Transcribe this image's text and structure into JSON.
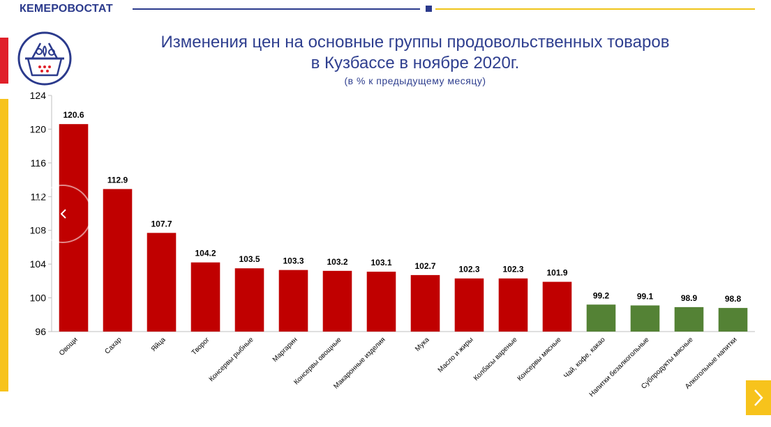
{
  "header": {
    "brand": "КЕМЕРОВОСТАТ"
  },
  "title_line1": "Изменения цен на основные группы продовольственных товаров",
  "title_line2": "в Кузбассе в ноябре 2020г.",
  "subtitle": "(в % к предыдущему  месяцу)",
  "colors": {
    "red": "#c00000",
    "green": "#548235",
    "brand_blue": "#2b3a8c",
    "accent_yellow": "#f7c31c",
    "accent_red": "#e0202a"
  },
  "icons": {
    "logo": "grocery-basket-icon",
    "prev": "chevron-left-icon",
    "next": "chevron-right-icon"
  },
  "chart_data": {
    "type": "bar",
    "categories": [
      "Овощи",
      "Сахар",
      "Яйца",
      "Творог",
      "Консервы рыбные",
      "Маргарин",
      "Консервы овощные",
      "Макаронные изделия",
      "Мука",
      "Масло и жиры",
      "Колбасы вареные",
      "Консервы мясные",
      "Чай, кофе, какао",
      "Напитки безалкогольные",
      "Субпродукты мясные",
      "Алкогольные напитки"
    ],
    "values": [
      120.6,
      112.9,
      107.7,
      104.2,
      103.5,
      103.3,
      103.2,
      103.1,
      102.7,
      102.3,
      102.3,
      101.9,
      99.2,
      99.1,
      98.9,
      98.8
    ],
    "data_labels": [
      "120.6",
      "112.9",
      "107.7",
      "104.2",
      "103.5",
      "103.3",
      "103.2",
      "103.1",
      "102.7",
      "102.3",
      "102.3",
      "101.9",
      "99.2",
      "99.1",
      "98.9",
      "98.8"
    ],
    "bar_colors": [
      "#c00000",
      "#c00000",
      "#c00000",
      "#c00000",
      "#c00000",
      "#c00000",
      "#c00000",
      "#c00000",
      "#c00000",
      "#c00000",
      "#c00000",
      "#c00000",
      "#548235",
      "#548235",
      "#548235",
      "#548235"
    ],
    "ylim": [
      96,
      124
    ],
    "yticks": [
      96,
      100,
      104,
      108,
      112,
      116,
      120,
      124
    ],
    "grid": false,
    "legend": "none"
  }
}
